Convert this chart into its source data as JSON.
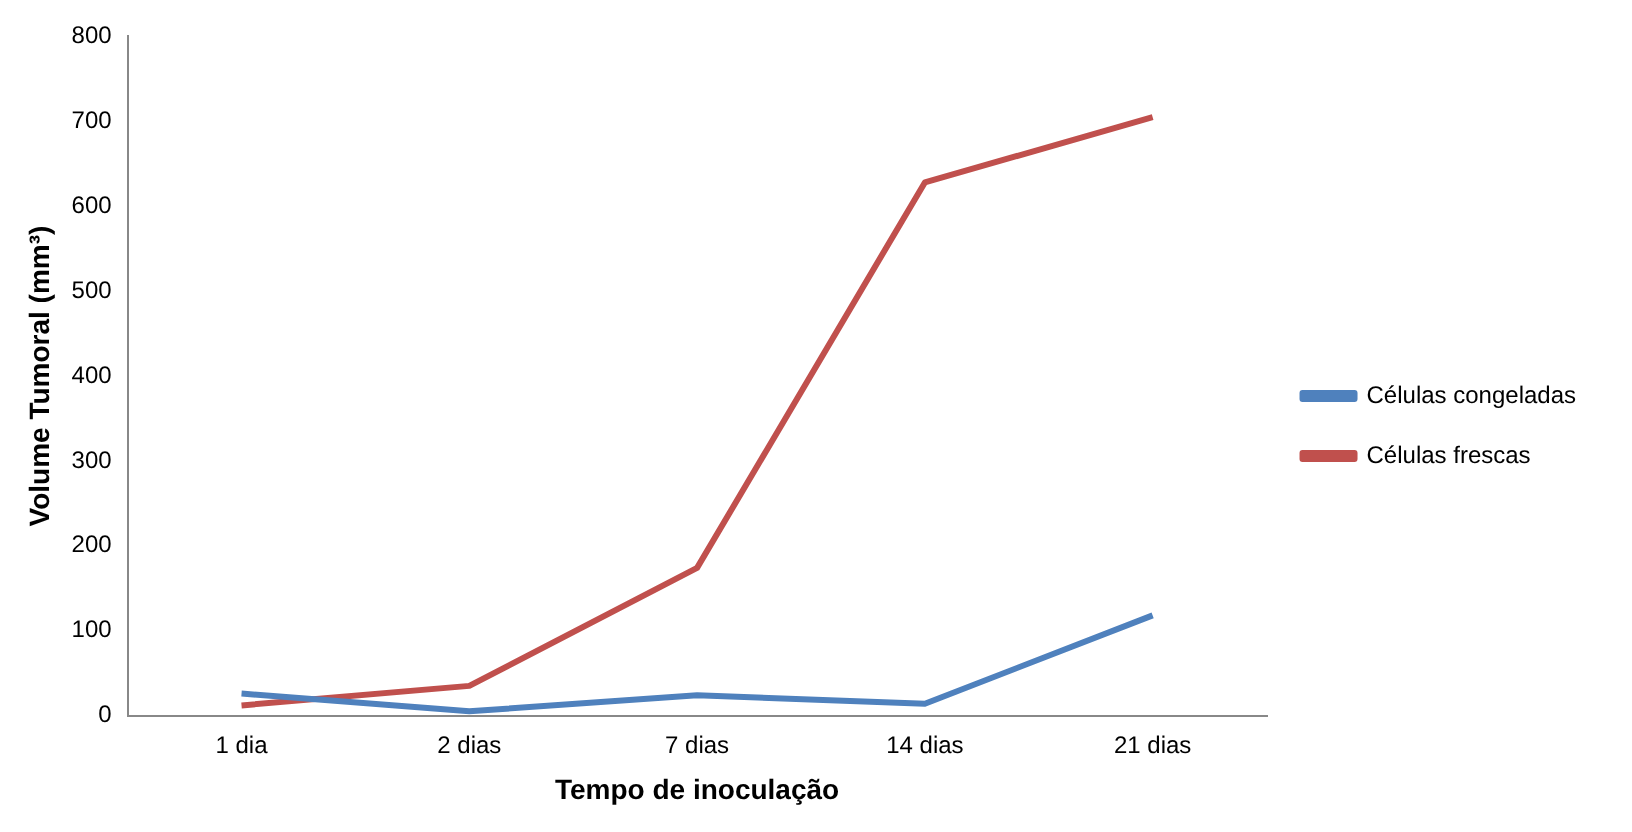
{
  "chart_data": {
    "type": "line",
    "xlabel": "Tempo de inoculação",
    "ylabel": "Volume Tumoral (mm³)",
    "categories": [
      "1 dia",
      "2 dias",
      "7 dias",
      "14 dias",
      "21 dias"
    ],
    "series": [
      {
        "name": "Células congeladas",
        "color": "#4f81bd",
        "values": [
          26,
          5,
          24,
          14,
          118
        ]
      },
      {
        "name": "Células frescas",
        "color": "#c0504d",
        "values": [
          12,
          35,
          174,
          628,
          705
        ]
      }
    ],
    "ylim": [
      0,
      800
    ],
    "yticks": [
      0,
      100,
      200,
      300,
      400,
      500,
      600,
      700,
      800
    ],
    "grid": false,
    "legend": "right",
    "marker": "none",
    "line_style": "solid"
  }
}
